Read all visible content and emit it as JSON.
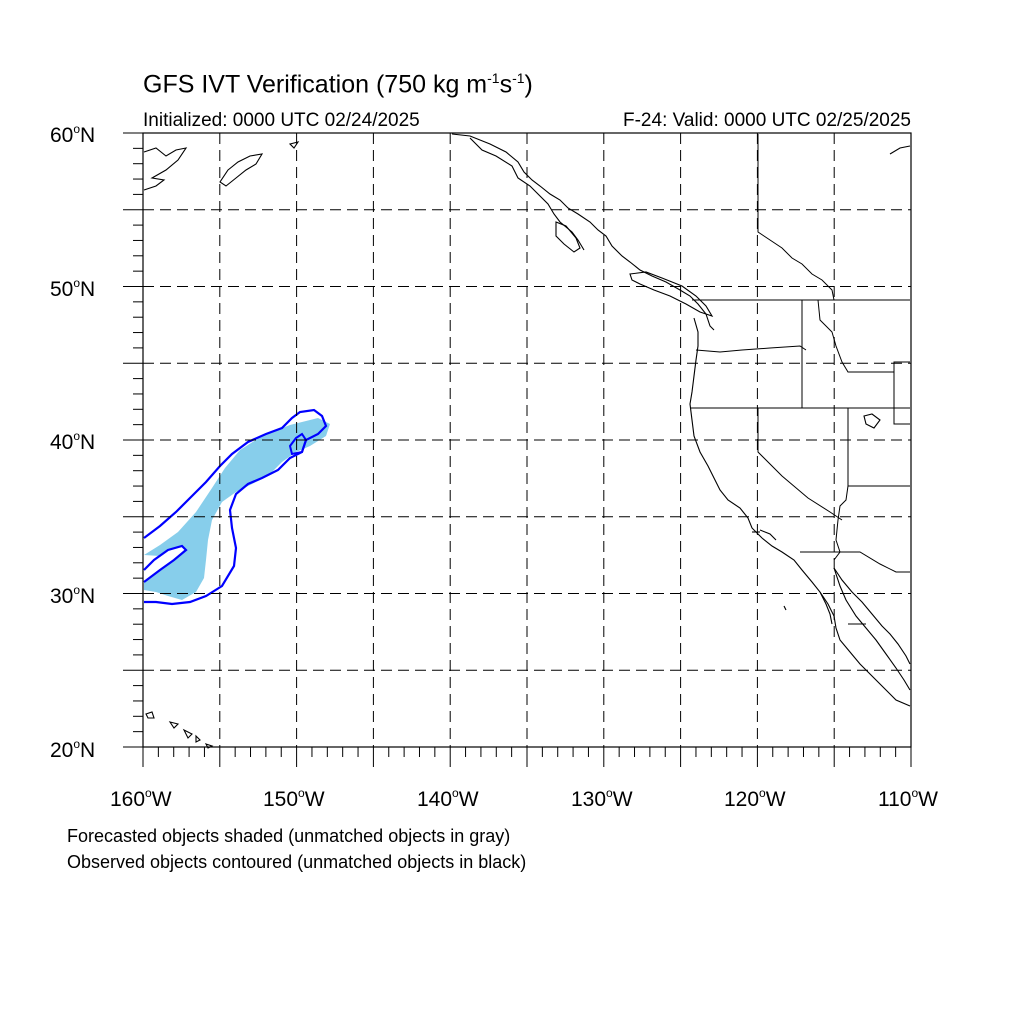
{
  "title": {
    "main": "GFS IVT Verification (750 kg m",
    "sup1": "-1",
    "mid": "s",
    "sup2": "-1",
    "end": ")"
  },
  "initialized": "Initialized: 0000 UTC 02/24/2025",
  "valid": "F-24: Valid: 0000 UTC 02/25/2025",
  "lat_labels": [
    {
      "value": "60",
      "suffix": "N"
    },
    {
      "value": "50",
      "suffix": "N"
    },
    {
      "value": "40",
      "suffix": "N"
    },
    {
      "value": "30",
      "suffix": "N"
    },
    {
      "value": "20",
      "suffix": "N"
    }
  ],
  "lon_labels": [
    {
      "value": "160",
      "suffix": "W"
    },
    {
      "value": "150",
      "suffix": "W"
    },
    {
      "value": "140",
      "suffix": "W"
    },
    {
      "value": "130",
      "suffix": "W"
    },
    {
      "value": "120",
      "suffix": "W"
    },
    {
      "value": "110",
      "suffix": "W"
    }
  ],
  "map": {
    "extent": {
      "lon": [
        -160,
        -110
      ],
      "lat": [
        20,
        60
      ]
    },
    "grid": "dashed every 5 degrees",
    "forecast_fill_color": "#87ceeb",
    "observed_contour_color": "#0000ff",
    "coastline_color": "#000000"
  },
  "notes": {
    "line1": "Forecasted objects shaded (unmatched objects in gray)",
    "line2": "Observed objects contoured (unmatched objects in black)"
  }
}
